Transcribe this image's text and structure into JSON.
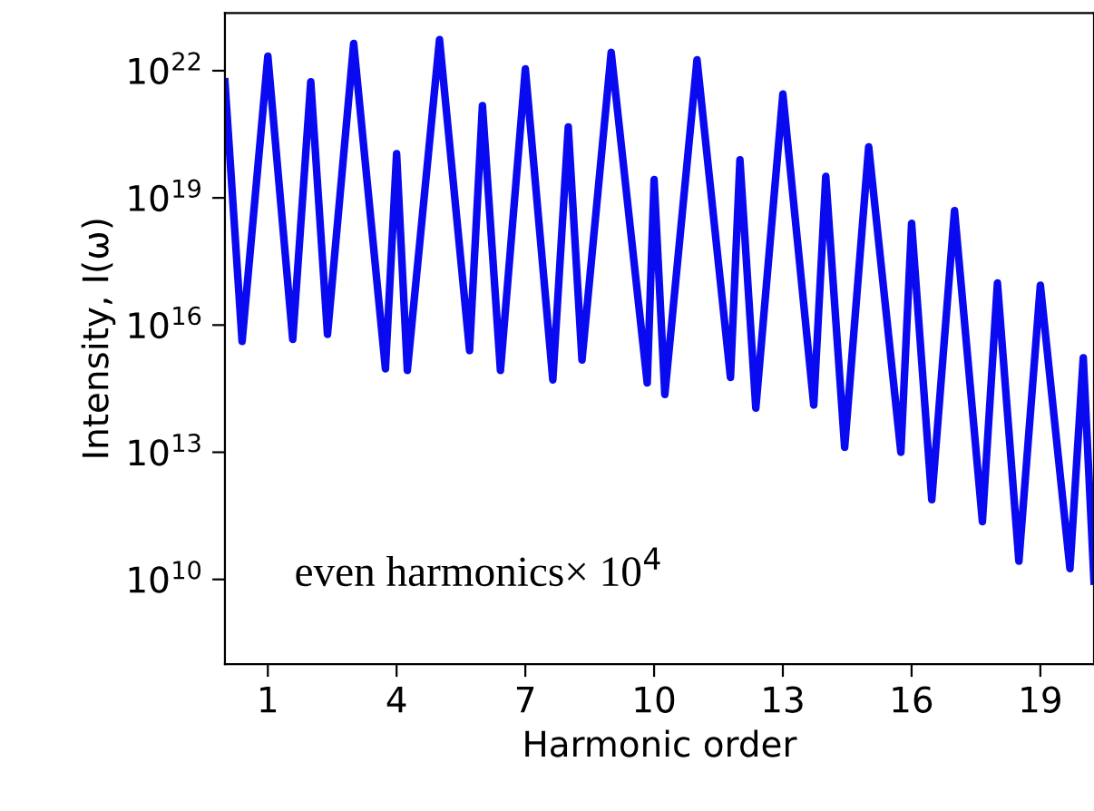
{
  "chart_data": {
    "type": "line",
    "xlabel": "Harmonic order",
    "ylabel": "Intensity, I(ω)",
    "log": "y",
    "grid": false,
    "marker": "none",
    "line_style": "solid",
    "annotations": [
      "even harmonics× 10$^{4}$"
    ],
    "xlim": [
      0,
      20.25
    ],
    "xticks": [
      1,
      4,
      7,
      10,
      13,
      16,
      19
    ],
    "ylim": [
      100000000.0,
      2.3e+23
    ],
    "yticks": [
      {
        "value": 10000000000.0,
        "label": "10$^{10}$"
      },
      {
        "value": 10000000000000.0,
        "label": "10$^{13}$"
      },
      {
        "value": 1e+16,
        "label": "10$^{16}$"
      },
      {
        "value": 1e+19,
        "label": "10$^{19}$"
      },
      {
        "value": 1e+22,
        "label": "10$^{22}$"
      }
    ],
    "series": [
      {
        "color": "#0a0af0",
        "x": [
          0,
          0.4,
          1,
          1.58,
          2,
          2.39,
          3,
          3.74,
          4,
          4.25,
          5,
          5.7,
          6,
          6.42,
          7,
          7.64,
          8,
          8.32,
          9,
          9.84,
          10,
          10.25,
          11,
          11.78,
          12,
          12.37,
          13,
          13.72,
          14,
          14.44,
          15,
          15.75,
          16,
          16.47,
          17,
          17.65,
          18,
          18.5,
          19,
          19.69,
          20,
          20.25
        ],
        "values": [
          5.5e+21,
          4100000000000000.0,
          2.2e+22,
          4600000000000000.0,
          5.5e+21,
          6000000000000000.0,
          4.4e+22,
          930000000000000.0,
          1.1e+20,
          850000000000000.0,
          5.4e+22,
          2500000000000000.0,
          1.5e+21,
          850000000000000.0,
          1.1e+22,
          510000000000000.0,
          4.7e+20,
          1500000000000000.0,
          2.7e+22,
          430000000000000.0,
          2.7e+19,
          230000000000000.0,
          1.8e+22,
          580000000000000.0,
          7.9e+19,
          110000000000000.0,
          2.8e+21,
          130000000000000.0,
          3.2e+19,
          13000000000000.0,
          1.6e+20,
          10000000000000.0,
          2.5e+18,
          760000000000.0,
          5e+18,
          230000000000.0,
          9.8e+16,
          27000000000.0,
          8.7e+16,
          18000000000.0,
          1700000000000000.0,
          9100000000.0
        ]
      }
    ]
  }
}
